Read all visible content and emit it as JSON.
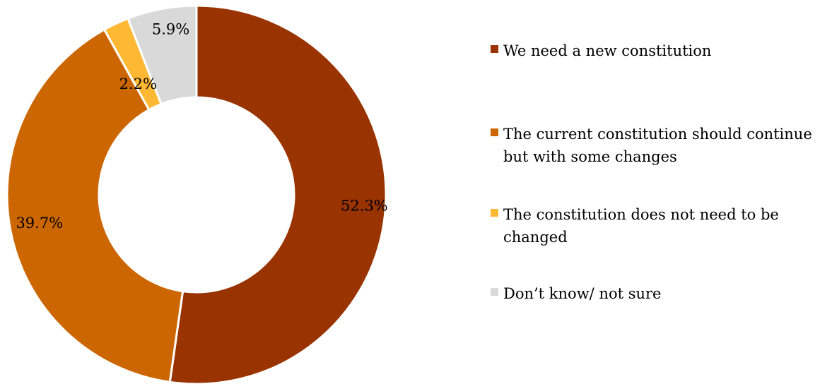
{
  "chart_data": {
    "type": "pie",
    "variant": "donut",
    "title": "",
    "slices": [
      {
        "label": "We need a new constitution",
        "value": 52.3,
        "value_label": "52.3%",
        "color": "#993300"
      },
      {
        "label": "The current constitution should continue but with some changes",
        "value": 39.7,
        "value_label": "39.7%",
        "color": "#cc6600"
      },
      {
        "label": "The constitution does not need to be changed",
        "value": 2.2,
        "value_label": "2.2%",
        "color": "#ffb833"
      },
      {
        "label": "Don’t know/ not sure",
        "value": 5.9,
        "value_label": "5.9%",
        "color": "#d9d9d9"
      }
    ],
    "legend_position": "right"
  }
}
